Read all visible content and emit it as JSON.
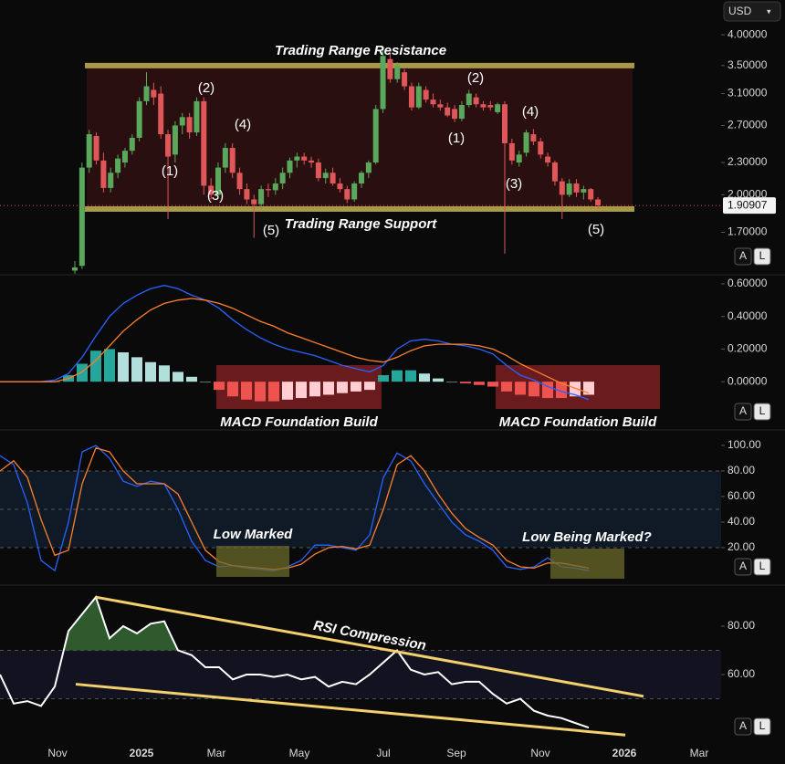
{
  "currency": "USD",
  "x_axis_labels": [
    "Nov",
    "2025",
    "Mar",
    "May",
    "Jul",
    "Sep",
    "Nov",
    "2026",
    "Mar"
  ],
  "chart_data": [
    {
      "type": "candlestick",
      "log": true,
      "ylim": [
        1.42,
        4.65
      ],
      "yticks": [
        {
          "value": 4,
          "label": "4.00000"
        },
        {
          "value": 3.5,
          "label": "3.50000"
        },
        {
          "value": 3.1,
          "label": "3.10000"
        },
        {
          "value": 2.7,
          "label": "2.70000"
        },
        {
          "value": 2.3,
          "label": "2.30000"
        },
        {
          "value": 2,
          "label": "2.00000"
        },
        {
          "value": 1.7,
          "label": "1.70000"
        }
      ],
      "last_price": 1.90907,
      "up_color": "#5aa85c",
      "down_color": "#e0575a",
      "open": [
        1.44,
        1.47,
        2.25,
        2.58,
        2.32,
        2.06,
        2.2,
        2.3,
        2.42,
        2.56,
        3.0,
        3.15,
        3.1,
        2.6,
        2.38,
        2.7,
        2.8,
        2.62,
        3.0,
        2.08,
        2.0,
        2.25,
        2.45,
        2.2,
        2.05,
        1.96,
        1.92,
        2.05,
        2.04,
        2.1,
        2.2,
        2.32,
        2.36,
        2.32,
        2.3,
        2.15,
        2.2,
        2.1,
        2.05,
        1.96,
        2.1,
        2.2,
        2.3,
        2.9,
        3.6,
        3.3,
        3.4,
        3.2,
        2.92,
        3.15,
        3.02,
        2.96,
        2.92,
        2.9,
        2.78,
        2.95,
        3.05,
        2.96,
        2.95,
        2.86,
        2.96,
        2.5,
        2.3,
        2.4,
        2.6,
        2.52,
        2.36,
        2.3,
        2.12,
        2.0,
        2.1,
        2.02,
        2.05,
        1.96
      ],
      "high": [
        1.5,
        2.3,
        2.65,
        2.62,
        2.4,
        2.25,
        2.38,
        2.45,
        2.6,
        3.05,
        3.4,
        3.25,
        3.2,
        2.65,
        2.75,
        2.85,
        2.85,
        3.05,
        3.05,
        2.15,
        2.3,
        2.5,
        2.5,
        2.25,
        2.1,
        2.0,
        2.08,
        2.1,
        2.15,
        2.25,
        2.35,
        2.4,
        2.4,
        2.36,
        2.34,
        2.24,
        2.25,
        2.15,
        2.08,
        2.12,
        2.22,
        2.32,
        2.95,
        3.75,
        3.7,
        3.55,
        3.45,
        3.25,
        3.25,
        3.2,
        3.1,
        3.02,
        2.98,
        2.95,
        3.0,
        3.15,
        3.1,
        3.0,
        3.0,
        2.98,
        3.0,
        2.55,
        2.42,
        2.65,
        2.66,
        2.56,
        2.4,
        2.32,
        2.15,
        2.14,
        2.14,
        2.08,
        2.06,
        1.98
      ],
      "low": [
        1.42,
        1.45,
        2.2,
        2.28,
        2.02,
        2.02,
        2.15,
        2.25,
        2.38,
        2.52,
        2.95,
        2.95,
        2.55,
        1.8,
        2.3,
        2.6,
        2.55,
        2.58,
        2.0,
        1.96,
        1.98,
        2.2,
        2.15,
        2.0,
        1.92,
        1.66,
        1.88,
        1.98,
        2.0,
        2.05,
        2.15,
        2.25,
        2.28,
        2.25,
        2.12,
        2.1,
        2.08,
        2.02,
        1.93,
        1.94,
        2.06,
        2.15,
        2.28,
        2.85,
        3.25,
        3.25,
        3.15,
        2.88,
        2.9,
        2.98,
        2.92,
        2.88,
        2.8,
        2.74,
        2.75,
        2.92,
        2.92,
        2.88,
        2.88,
        2.84,
        1.55,
        2.28,
        2.26,
        2.36,
        2.48,
        2.34,
        2.26,
        2.08,
        1.8,
        1.98,
        1.98,
        1.96,
        1.94,
        1.88
      ],
      "close": [
        1.46,
        2.25,
        2.6,
        2.32,
        2.06,
        2.2,
        2.34,
        2.42,
        2.56,
        3.0,
        3.2,
        3.05,
        2.6,
        2.36,
        2.7,
        2.8,
        2.62,
        3.0,
        2.08,
        2.0,
        2.25,
        2.45,
        2.2,
        2.05,
        1.96,
        1.92,
        2.05,
        2.04,
        2.1,
        2.2,
        2.32,
        2.36,
        2.32,
        2.3,
        2.15,
        2.2,
        2.1,
        2.05,
        1.96,
        2.1,
        2.2,
        2.3,
        2.9,
        3.65,
        3.3,
        3.5,
        3.2,
        2.92,
        3.2,
        3.02,
        2.96,
        2.92,
        2.82,
        2.78,
        2.95,
        3.1,
        2.96,
        2.92,
        2.92,
        2.96,
        2.5,
        2.32,
        2.38,
        2.62,
        2.52,
        2.38,
        2.3,
        2.12,
        2.0,
        2.1,
        2.02,
        2.05,
        1.96,
        1.91
      ],
      "range": {
        "resistance": 3.5,
        "support": 1.88,
        "color": "#a8994a",
        "fill": "#2a0f10"
      },
      "annotations": [
        "Trading Range Resistance",
        "Trading Range Support"
      ],
      "wave_labels": [
        "(1)",
        "(2)",
        "(3)",
        "(4)",
        "(5)",
        "(1)",
        "(2)",
        "(3)",
        "(4)",
        "(5)"
      ],
      "buttons": [
        "A",
        "L"
      ]
    },
    {
      "type": "macd",
      "ylim": [
        -0.29,
        0.65
      ],
      "yticks": [
        {
          "value": 0.6,
          "label": "0.60000"
        },
        {
          "value": 0.4,
          "label": "0.40000"
        },
        {
          "value": 0.2,
          "label": "0.20000"
        },
        {
          "value": 0,
          "label": "0.00000"
        }
      ],
      "histogram": [
        0,
        0,
        0,
        0,
        0,
        0.04,
        0.11,
        0.19,
        0.2,
        0.18,
        0.15,
        0.12,
        0.1,
        0.06,
        0.03,
        0,
        -0.05,
        -0.09,
        -0.11,
        -0.12,
        -0.12,
        -0.11,
        -0.1,
        -0.09,
        -0.08,
        -0.07,
        -0.06,
        -0.05,
        0.04,
        0.07,
        0.07,
        0.05,
        0.02,
        0,
        -0.01,
        -0.02,
        -0.03,
        -0.06,
        -0.08,
        -0.09,
        -0.1,
        -0.1,
        -0.09,
        -0.08
      ],
      "hist_colors": {
        "up_rising": "#26a69a",
        "up_falling": "#b2dfdb",
        "down_falling": "#ef5350",
        "down_rising": "#ffcdd2"
      },
      "series": [
        {
          "color": "#2962ff",
          "values": [
            0,
            0,
            0,
            0,
            0.01,
            0.05,
            0.15,
            0.28,
            0.4,
            0.48,
            0.53,
            0.57,
            0.59,
            0.57,
            0.53,
            0.5,
            0.45,
            0.38,
            0.32,
            0.27,
            0.23,
            0.2,
            0.18,
            0.16,
            0.13,
            0.1,
            0.08,
            0.06,
            0.1,
            0.2,
            0.25,
            0.26,
            0.25,
            0.23,
            0.22,
            0.2,
            0.17,
            0.1,
            0.04,
            0.01,
            -0.03,
            -0.06,
            -0.08,
            -0.11
          ]
        },
        {
          "color": "#ff7f2a",
          "values": [
            0,
            0,
            0,
            0,
            0,
            0.02,
            0.06,
            0.13,
            0.22,
            0.31,
            0.38,
            0.44,
            0.48,
            0.5,
            0.51,
            0.5,
            0.48,
            0.45,
            0.41,
            0.37,
            0.34,
            0.3,
            0.27,
            0.24,
            0.21,
            0.18,
            0.15,
            0.13,
            0.12,
            0.15,
            0.19,
            0.22,
            0.23,
            0.23,
            0.23,
            0.22,
            0.2,
            0.16,
            0.11,
            0.07,
            0.03,
            -0.01,
            -0.04,
            -0.07
          ]
        }
      ],
      "annotations": [
        "MACD Foundation Build",
        "MACD Foundation Build"
      ],
      "buttons": [
        "A",
        "L"
      ]
    },
    {
      "type": "line",
      "ylim": [
        -8.6,
        111.4
      ],
      "yticks": [
        {
          "value": 100,
          "label": "100.00"
        },
        {
          "value": 80,
          "label": "80.00"
        },
        {
          "value": 60,
          "label": "60.00"
        },
        {
          "value": 40,
          "label": "40.00"
        },
        {
          "value": 20,
          "label": "20.00"
        }
      ],
      "levels": [
        80,
        50,
        20
      ],
      "band": [
        20,
        80
      ],
      "band_color": "#0f1a26",
      "series": [
        {
          "color": "#2962ff",
          "values": [
            92,
            85,
            55,
            10,
            2,
            40,
            95,
            100,
            90,
            72,
            68,
            72,
            70,
            50,
            25,
            10,
            5,
            6,
            4,
            3,
            2,
            5,
            10,
            22,
            22,
            20,
            18,
            30,
            75,
            94,
            88,
            70,
            55,
            40,
            30,
            25,
            18,
            5,
            3,
            5,
            12,
            5,
            4,
            2
          ]
        },
        {
          "color": "#ff7f2a",
          "values": [
            80,
            88,
            75,
            42,
            14,
            18,
            70,
            98,
            95,
            80,
            70,
            70,
            70,
            62,
            40,
            18,
            9,
            6,
            5,
            4,
            3,
            4,
            7,
            15,
            20,
            21,
            19,
            22,
            50,
            85,
            92,
            80,
            62,
            47,
            35,
            28,
            22,
            10,
            5,
            4,
            8,
            8,
            6,
            4
          ]
        }
      ],
      "annotations": [
        "Low Marked",
        "Low Being Marked?"
      ],
      "buttons": [
        "A",
        "L"
      ]
    },
    {
      "type": "line",
      "ylim": [
        31.3,
        96.6
      ],
      "yticks": [
        {
          "value": 80,
          "label": "80.00"
        },
        {
          "value": 60,
          "label": "60.00"
        }
      ],
      "levels": [
        70,
        50
      ],
      "band": [
        50,
        70
      ],
      "band_color": "#121220",
      "overbought_fill": "#2e5a2e",
      "series": [
        {
          "color": "#ffffff",
          "values": [
            60,
            48,
            49,
            47,
            55,
            78,
            85,
            92,
            75,
            80,
            77,
            81,
            82,
            70,
            68,
            63,
            63,
            58,
            60,
            60,
            59,
            60,
            58,
            59,
            55,
            57,
            56,
            60,
            65,
            70,
            62,
            60,
            61,
            56,
            57,
            57,
            52,
            48,
            50,
            45,
            43,
            42,
            40,
            38
          ]
        }
      ],
      "trendlines": [
        {
          "values": [
            92,
            51
          ]
        },
        {
          "values": [
            56,
            35
          ]
        }
      ],
      "trendline_color": "#f2d06b",
      "annotations": [
        "RSI Compression"
      ],
      "buttons": [
        "A",
        "L"
      ]
    }
  ]
}
